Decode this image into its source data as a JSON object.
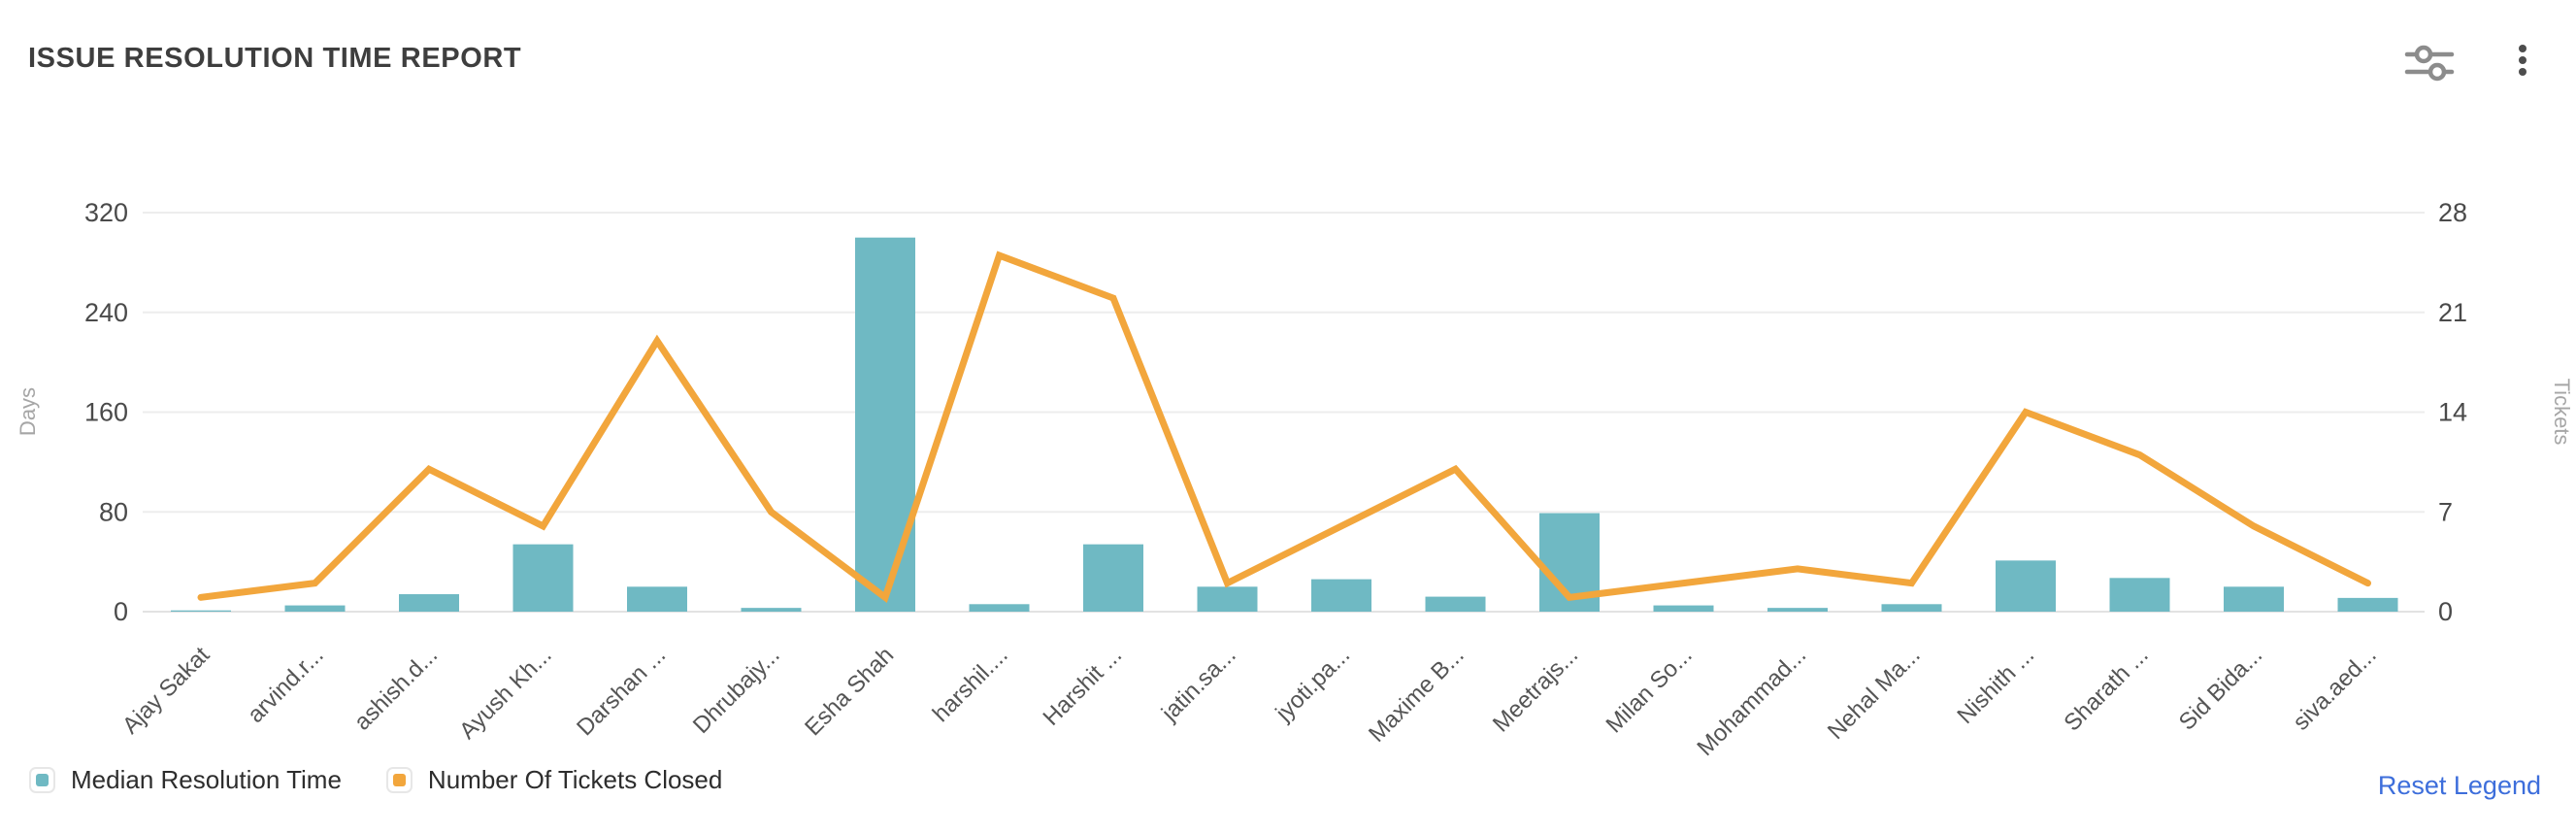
{
  "header": {
    "title": "ISSUE RESOLUTION TIME REPORT",
    "icons": [
      {
        "name": "filter-sliders-icon"
      },
      {
        "name": "kebab-menu-icon"
      }
    ]
  },
  "colors": {
    "bar_teal": "#6FB9C3",
    "line_orange": "#F2A63C",
    "grid": "#ededed",
    "axis_line": "#e2e2e2",
    "tick_text": "#4a4a4a",
    "axis_unit_text": "#a6a6a6",
    "category_text": "#555555",
    "link_blue": "#3d6edb"
  },
  "chart_data": {
    "type": "bar",
    "subtype": "combo-bar-line-dual-axis",
    "title": "ISSUE RESOLUTION TIME REPORT",
    "categories": [
      "Ajay Sakat",
      "arvind.r...",
      "ashish.d...",
      "Ayush Kh...",
      "Darshan ...",
      "Dhrubajy...",
      "Esha Shah",
      "harshil....",
      "Harshit ...",
      "jatin.sa...",
      "jyoti.pa...",
      "Maxime B...",
      "Meetrajs...",
      "Milan So...",
      "Mohammad...",
      "Nehal Ma...",
      "Nishith ...",
      "Sharath ...",
      "Sid Bida...",
      "siva.aed..."
    ],
    "series": [
      {
        "name": "Median Resolution Time",
        "type": "bar",
        "axis": "left",
        "color": "#6FB9C3",
        "values": [
          1,
          5,
          14,
          54,
          20,
          3,
          300,
          6,
          54,
          20,
          26,
          12,
          79,
          5,
          3,
          6,
          41,
          27,
          20,
          11
        ]
      },
      {
        "name": "Number Of Tickets Closed",
        "type": "line",
        "axis": "right",
        "color": "#F2A63C",
        "values": [
          1,
          2,
          10,
          6,
          19,
          7,
          1,
          25,
          22,
          2,
          6,
          10,
          1,
          2,
          3,
          2,
          14,
          11,
          6,
          2
        ]
      }
    ],
    "y_left": {
      "label": "Days",
      "ticks": [
        0,
        80,
        160,
        240,
        320
      ],
      "min": 0,
      "max": 320
    },
    "y_right": {
      "label": "Tickets",
      "ticks": [
        0,
        7,
        14,
        21,
        28
      ],
      "min": 0,
      "max": 28
    },
    "grid": "horizontal-only",
    "legend_position": "bottom-left",
    "category_label_rotation": -45
  },
  "legend": {
    "items": [
      {
        "label": "Median Resolution Time",
        "color": "#6FB9C3"
      },
      {
        "label": "Number Of Tickets Closed",
        "color": "#F2A63C"
      }
    ],
    "reset_label": "Reset Legend"
  }
}
